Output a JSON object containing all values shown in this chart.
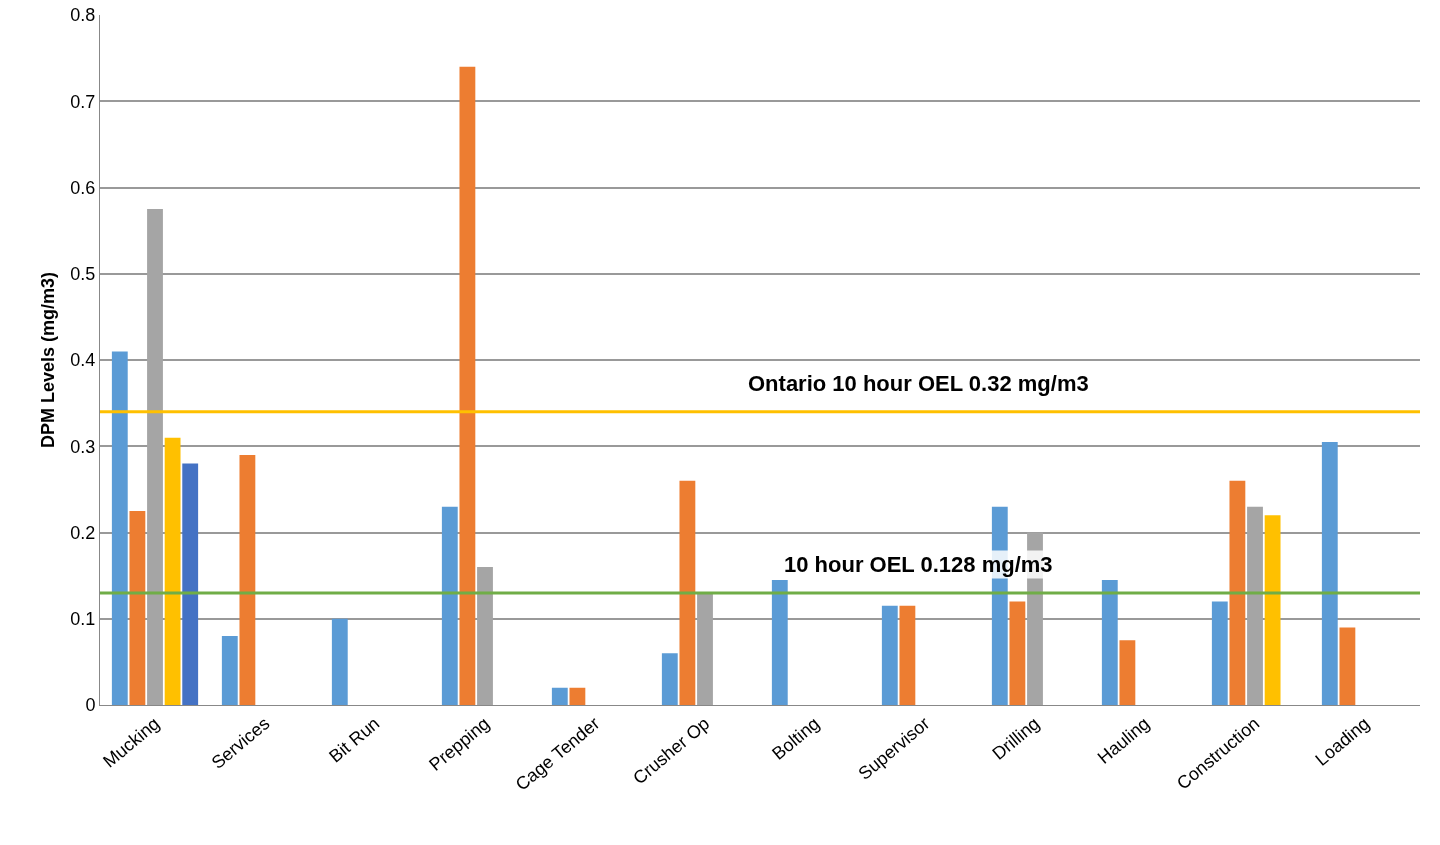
{
  "chart_data": {
    "type": "bar",
    "ylabel": "DPM Levels (mg/m3)",
    "categories": [
      "Mucking",
      "Services",
      "Bit Run",
      "Prepping",
      "Cage Tender",
      "Crusher Op",
      "Bolting",
      "Supervisor",
      "Drilling",
      "Hauling",
      "Construction",
      "Loading"
    ],
    "series": [
      {
        "color": "#5b9bd5",
        "values": [
          0.41,
          0.08,
          0.1,
          0.23,
          0.02,
          0.06,
          0.145,
          0.115,
          0.23,
          0.145,
          0.12,
          0.305
        ]
      },
      {
        "color": "#ed7d31",
        "values": [
          0.225,
          0.29,
          null,
          0.74,
          0.02,
          0.26,
          null,
          0.115,
          0.12,
          0.075,
          0.26,
          0.09
        ]
      },
      {
        "color": "#a5a5a5",
        "values": [
          0.575,
          null,
          null,
          0.16,
          null,
          0.13,
          null,
          null,
          0.2,
          null,
          0.23,
          null
        ]
      },
      {
        "color": "#ffc000",
        "values": [
          0.31,
          null,
          null,
          null,
          null,
          null,
          null,
          null,
          null,
          null,
          0.22,
          null
        ]
      },
      {
        "color": "#4472c4",
        "values": [
          0.28,
          null,
          null,
          null,
          null,
          null,
          null,
          null,
          null,
          null,
          null,
          null
        ]
      }
    ],
    "ylim": [
      0,
      0.8
    ],
    "yticks": [
      0,
      0.1,
      0.2,
      0.3,
      0.4,
      0.5,
      0.6,
      0.7,
      0.8
    ],
    "grid": "y",
    "ref_lines": [
      {
        "axis": "y",
        "value": 0.34,
        "label": "Ontario 10 hour OEL 0.32 mg/m3",
        "color": "#ffc000"
      },
      {
        "axis": "y",
        "value": 0.13,
        "label": "10 hour OEL 0.128 mg/m3",
        "color": "#70ad47"
      }
    ]
  }
}
